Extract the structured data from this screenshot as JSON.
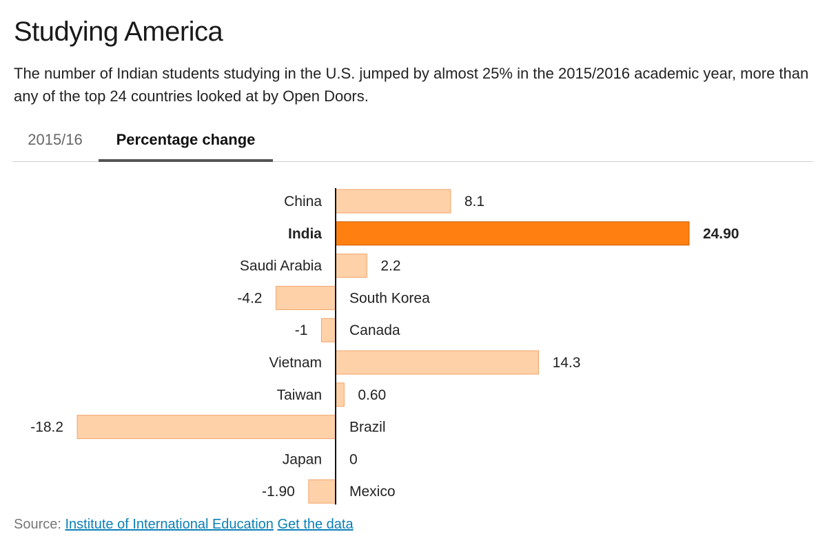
{
  "header": {
    "title": "Studying America",
    "subtitle": "The number of Indian students studying in the U.S. jumped by almost 25% in the 2015/2016 academic year, more than any of the top 24 countries looked at by Open Doors."
  },
  "tabs": [
    {
      "label": "2015/16",
      "active": false
    },
    {
      "label": "Percentage change",
      "active": true
    }
  ],
  "colors": {
    "bar_default": "#ffd1a8",
    "bar_default_stroke": "#f0a46a",
    "bar_highlight": "#ff7f10",
    "bar_highlight_stroke": "#c95f00",
    "axis": "#111111",
    "tab_underline": "#555555",
    "link": "#0a7fb7"
  },
  "chart_data": {
    "type": "bar",
    "orientation": "horizontal",
    "title": "",
    "xlabel": "",
    "ylabel": "",
    "categories": [
      "China",
      "India",
      "Saudi Arabia",
      "South Korea",
      "Canada",
      "Vietnam",
      "Taiwan",
      "Brazil",
      "Japan",
      "Mexico"
    ],
    "values": [
      8.1,
      24.9,
      2.2,
      -4.2,
      -1,
      14.3,
      0.6,
      -18.2,
      0,
      -1.9
    ],
    "value_labels": [
      "8.1",
      "24.90",
      "2.2",
      "-4.2",
      "-1",
      "14.3",
      "0.60",
      "-18.2",
      "0",
      "-1.90"
    ],
    "highlight": "India",
    "xlim": [
      -18.2,
      24.9
    ],
    "grid": false
  },
  "footer": {
    "source_prefix": "Source:",
    "source_link": "Institute of International Education",
    "data_link": "Get the data"
  }
}
